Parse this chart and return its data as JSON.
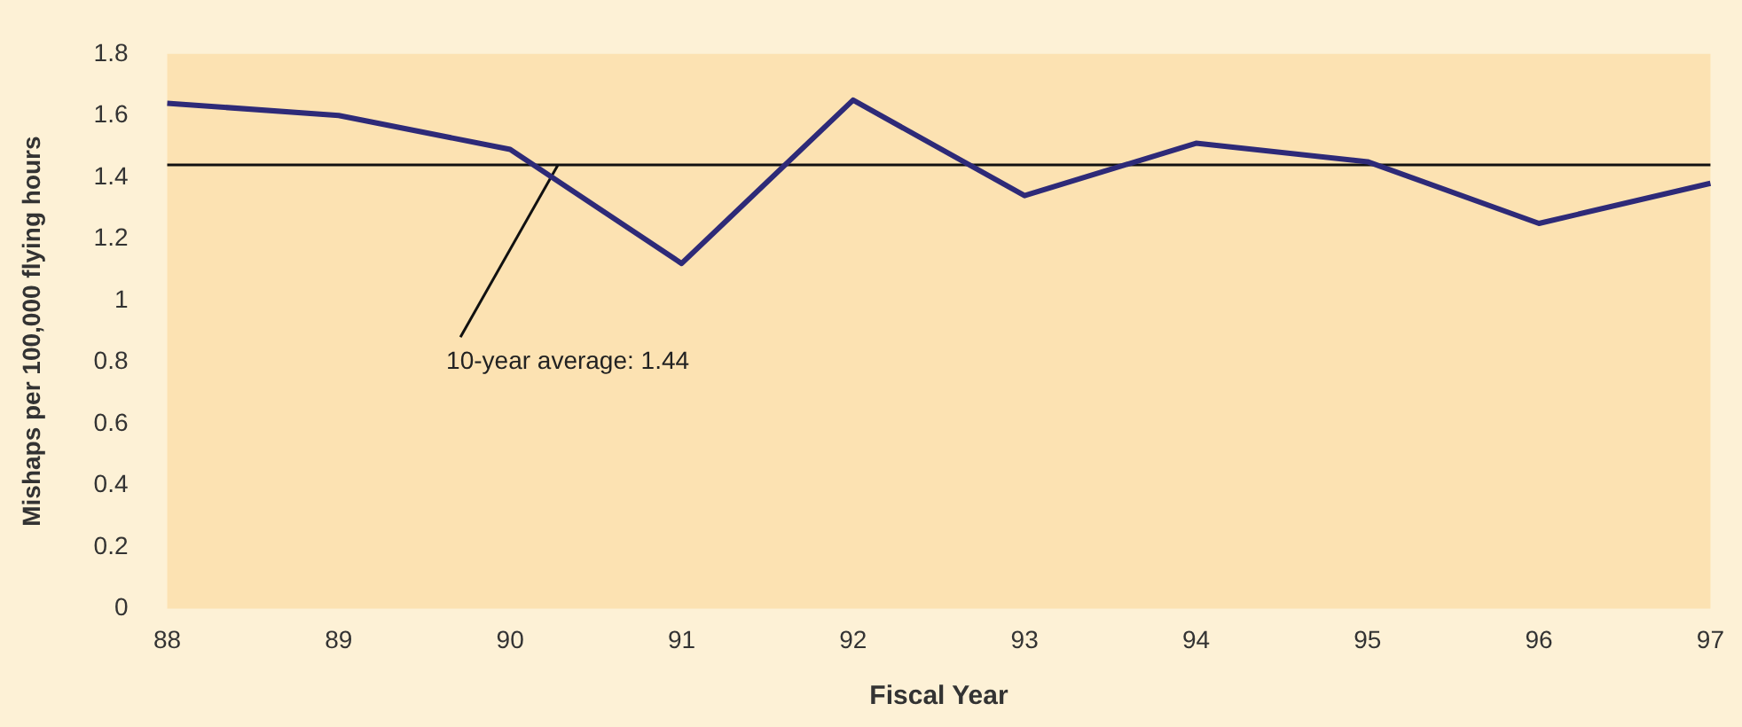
{
  "chart_data": {
    "type": "line",
    "xlabel": "Fiscal Year",
    "ylabel": "Mishaps per 100,000 flying hours",
    "categories": [
      "88",
      "89",
      "90",
      "91",
      "92",
      "93",
      "94",
      "95",
      "96",
      "97"
    ],
    "series": [
      {
        "color": "#2e2a78",
        "values": [
          1.64,
          1.6,
          1.49,
          1.12,
          1.65,
          1.34,
          1.51,
          1.45,
          1.25,
          1.38
        ]
      }
    ],
    "ylim": [
      0,
      1.8
    ],
    "yticks": [
      0,
      0.2,
      0.4,
      0.6,
      0.8,
      1,
      1.2,
      1.4,
      1.6,
      1.8
    ],
    "ref_lines": [
      {
        "axis": "y",
        "value": 1.44,
        "label": "10-year average: 1.44",
        "color": "#111111"
      }
    ],
    "grid": false,
    "legend": false,
    "marker": "none",
    "line_style": "solid"
  }
}
